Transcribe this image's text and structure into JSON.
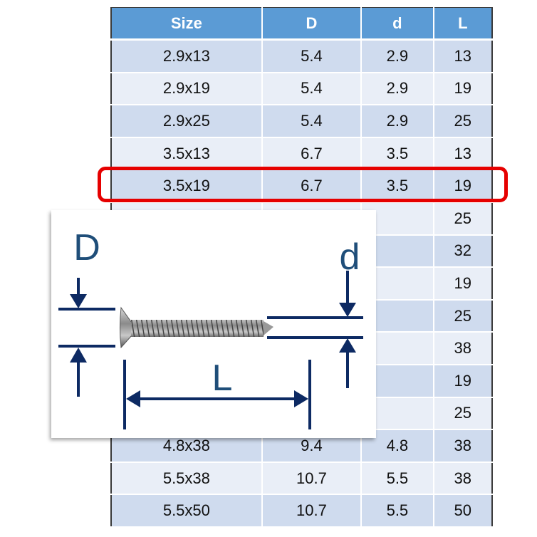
{
  "table": {
    "headers": [
      "Size",
      "D",
      "d",
      "L"
    ],
    "rows": [
      [
        "2.9x13",
        "5.4",
        "2.9",
        "13"
      ],
      [
        "2.9x19",
        "5.4",
        "2.9",
        "19"
      ],
      [
        "2.9x25",
        "5.4",
        "2.9",
        "25"
      ],
      [
        "3.5x13",
        "6.7",
        "3.5",
        "13"
      ],
      [
        "3.5x19",
        "6.7",
        "3.5",
        "19"
      ],
      [
        "",
        "",
        "",
        "25"
      ],
      [
        "",
        "",
        "",
        "32"
      ],
      [
        "",
        "",
        "",
        "19"
      ],
      [
        "",
        "",
        "",
        "25"
      ],
      [
        "",
        "",
        "",
        "38"
      ],
      [
        "",
        "",
        "",
        "19"
      ],
      [
        "",
        "",
        "",
        "25"
      ],
      [
        "4.8x38",
        "9.4",
        "4.8",
        "38"
      ],
      [
        "5.5x38",
        "10.7",
        "5.5",
        "38"
      ],
      [
        "5.5x50",
        "10.7",
        "5.5",
        "50"
      ]
    ],
    "highlighted_row": 4
  },
  "diagram": {
    "label_D": "D",
    "label_d": "d",
    "label_L": "L"
  },
  "colors": {
    "header": "#5b9bd5",
    "row_odd": "#cfdbee",
    "row_even": "#e9eef7",
    "highlight": "#e60000",
    "dimension": "#0d2a63"
  }
}
